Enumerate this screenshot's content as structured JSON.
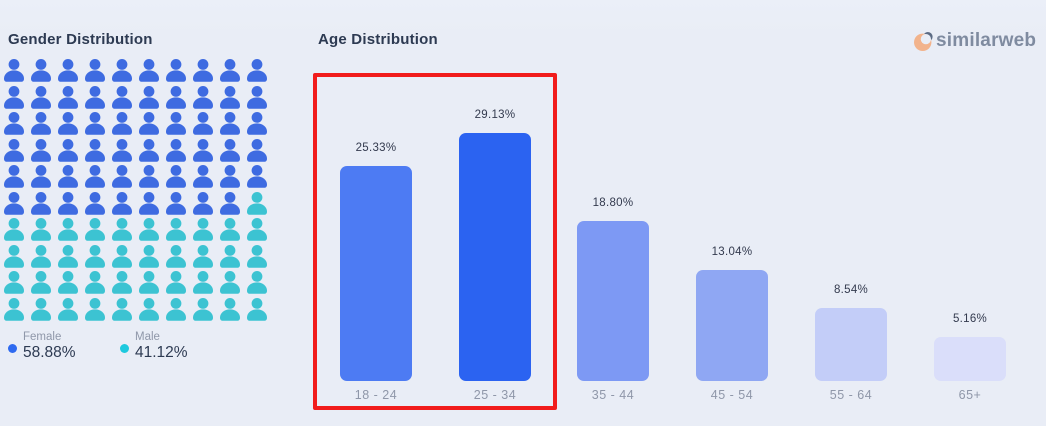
{
  "page": {
    "background": "#e9edf6"
  },
  "chart_data": [
    {
      "type": "pictogram",
      "title": "Gender Distribution",
      "categories": [
        "Female",
        "Male"
      ],
      "values": [
        58.88,
        41.12
      ],
      "value_labels": [
        "58.88%",
        "41.12%"
      ],
      "icon_counts": [
        59,
        41
      ],
      "grid": {
        "columns": 10,
        "rows": 10,
        "total_icons": 100
      },
      "icon_colors": [
        "#3e6be1",
        "#3cc3d2"
      ],
      "legend_dot_colors": [
        "#2e6af0",
        "#1ec9de"
      ],
      "legend_position": "bottom-left"
    },
    {
      "type": "bar",
      "title": "Age Distribution",
      "categories": [
        "18 - 24",
        "25 - 34",
        "35 - 44",
        "45 - 54",
        "55 - 64",
        "65+"
      ],
      "values": [
        25.33,
        29.13,
        18.8,
        13.04,
        8.54,
        5.16
      ],
      "value_labels": [
        "25.33%",
        "29.13%",
        "18.80%",
        "13.04%",
        "8.54%",
        "5.16%"
      ],
      "bar_colors": [
        "#4d7bf3",
        "#2b63f1",
        "#7d99f4",
        "#8fa7f3",
        "#c3cdf8",
        "#dadefa"
      ],
      "highlighted_categories": [
        "18 - 24",
        "25 - 34"
      ],
      "highlight_box_color": "#f11c1c",
      "xlabel": "",
      "ylabel": "",
      "ylim": [
        0,
        32
      ],
      "grid_lines": false,
      "legend": "none"
    }
  ],
  "brand": {
    "logo_text": "similarweb",
    "logo_text_color": "#7f8ba0",
    "logo_icon_peach": "#f2b38c",
    "logo_icon_dark": "#5c6b84"
  }
}
